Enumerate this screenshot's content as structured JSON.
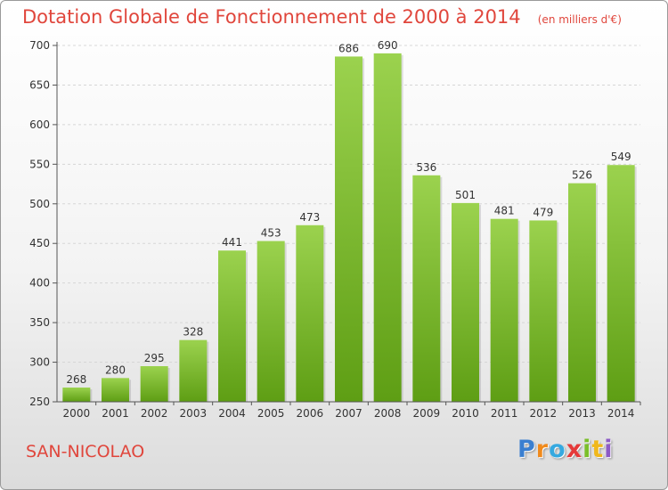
{
  "chart_data": {
    "type": "bar",
    "title": "Dotation Globale de Fonctionnement de 2000 à 2014",
    "unit": "(en milliers d'€)",
    "categories": [
      "2000",
      "2001",
      "2002",
      "2003",
      "2004",
      "2005",
      "2006",
      "2007",
      "2008",
      "2009",
      "2010",
      "2011",
      "2012",
      "2013",
      "2014"
    ],
    "values": [
      268,
      280,
      295,
      328,
      441,
      453,
      473,
      686,
      690,
      536,
      501,
      481,
      479,
      526,
      549
    ],
    "ylim": [
      250,
      700
    ],
    "yticks": [
      250,
      300,
      350,
      400,
      450,
      500,
      550,
      600,
      650,
      700
    ],
    "grid": true,
    "bar_color_top": "#9bd24e",
    "bar_color_bottom": "#5e9e14"
  },
  "footer": {
    "commune": "SAN-NICOLAO",
    "brand_letters": [
      "P",
      "r",
      "o",
      "x",
      "i",
      "t",
      "i"
    ],
    "brand_colors": [
      "#3a7fd0",
      "#f08a1c",
      "#36a9e0",
      "#e53a3a",
      "#7bbf2a",
      "#f0b81c",
      "#8d5bc6"
    ]
  }
}
